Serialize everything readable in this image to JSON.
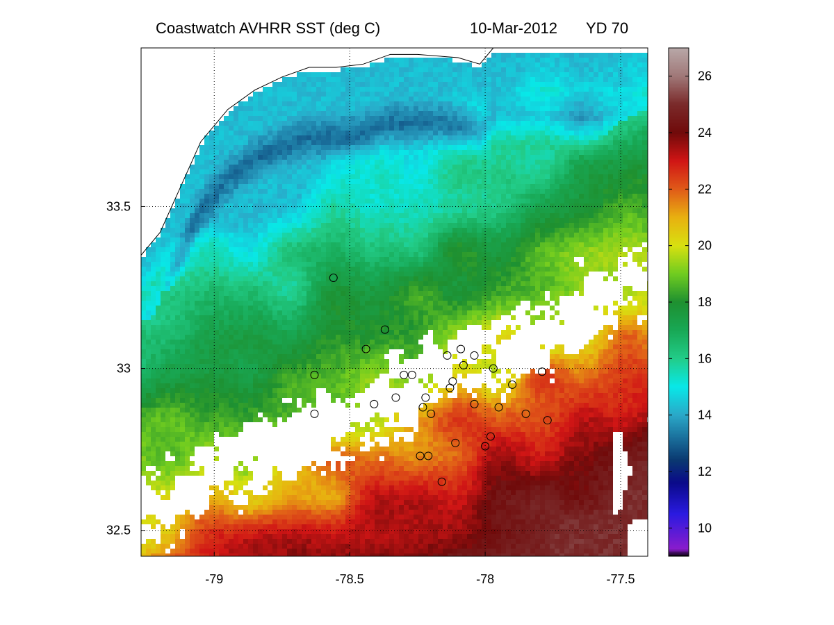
{
  "title": {
    "product": "Coastwatch AVHRR SST (deg C)",
    "date": "10-Mar-2012",
    "yearday": "YD 70"
  },
  "chart_data": [
    {
      "type": "heatmap",
      "title": "Coastwatch AVHRR SST (deg C)",
      "xlim": [
        -79.27,
        -77.4
      ],
      "ylim": [
        32.42,
        33.99
      ],
      "x_ticks": [
        -79,
        -78.5,
        -78,
        -77.5
      ],
      "x_tick_labels": [
        "-79",
        "-78.5",
        "-78",
        "-77.5"
      ],
      "y_ticks": [
        32.5,
        33,
        33.5
      ],
      "y_tick_labels": [
        "32.5",
        "33",
        "33.5"
      ],
      "grid": "dotted",
      "colorbar": {
        "min": 9,
        "max": 27,
        "ticks": [
          10,
          12,
          14,
          16,
          18,
          20,
          22,
          24,
          26
        ],
        "tick_labels": [
          "10",
          "12",
          "14",
          "16",
          "18",
          "20",
          "22",
          "24",
          "26"
        ],
        "colormap": [
          [
            9,
            "#000000"
          ],
          [
            9.25,
            "#8a1ccc"
          ],
          [
            10.5,
            "#2a1ae0"
          ],
          [
            11.6,
            "#0a0a8a"
          ],
          [
            12.4,
            "#0a3870"
          ],
          [
            14,
            "#2aa8c8"
          ],
          [
            15,
            "#08e8e8"
          ],
          [
            16,
            "#22cc88"
          ],
          [
            17,
            "#18a855"
          ],
          [
            18,
            "#1e9030"
          ],
          [
            19,
            "#70cc20"
          ],
          [
            20,
            "#d8e010"
          ],
          [
            21,
            "#e8b010"
          ],
          [
            22,
            "#e05a18"
          ],
          [
            23,
            "#d01515"
          ],
          [
            24,
            "#700a0a"
          ],
          [
            25,
            "#7a2a2a"
          ],
          [
            26,
            "#a07878"
          ],
          [
            27,
            "#b8a8a8"
          ]
        ]
      },
      "sst_field": {
        "front_axis": [
          [
            -79.1,
            32.6
          ],
          [
            -77.5,
            33.2
          ]
        ],
        "values_by_offshore_distance": [
          14.3,
          15.2,
          16.0,
          17.2,
          18.2,
          19.2,
          20.3,
          22.0,
          23.2,
          24.2,
          25.0
        ],
        "near_shore_band": [
          14.3,
          13.5,
          15.0
        ],
        "description_of_clouds": "white cloud gaps along the Gulf Stream front"
      },
      "coastline": [
        [
          -79.27,
          33.35
        ],
        [
          -79.2,
          33.42
        ],
        [
          -79.13,
          33.55
        ],
        [
          -79.05,
          33.7
        ],
        [
          -78.95,
          33.8
        ],
        [
          -78.85,
          33.86
        ],
        [
          -78.75,
          33.9
        ],
        [
          -78.65,
          33.93
        ],
        [
          -78.55,
          33.93
        ],
        [
          -78.45,
          33.94
        ],
        [
          -78.35,
          33.97
        ],
        [
          -78.25,
          33.97
        ],
        [
          -78.1,
          33.96
        ],
        [
          -78.02,
          33.94
        ],
        [
          -77.97,
          33.99
        ]
      ],
      "stations": [
        {
          "lon": -78.56,
          "lat": 33.28
        },
        {
          "lon": -78.37,
          "lat": 33.12
        },
        {
          "lon": -78.44,
          "lat": 33.06
        },
        {
          "lon": -78.08,
          "lat": 33.01
        },
        {
          "lon": -78.63,
          "lat": 32.98
        },
        {
          "lon": -78.14,
          "lat": 33.04
        },
        {
          "lon": -78.63,
          "lat": 32.86
        },
        {
          "lon": -78.41,
          "lat": 32.89
        },
        {
          "lon": -78.23,
          "lat": 32.88
        },
        {
          "lon": -78.09,
          "lat": 33.06
        },
        {
          "lon": -78.33,
          "lat": 32.91
        },
        {
          "lon": -78.3,
          "lat": 32.98
        },
        {
          "lon": -78.27,
          "lat": 32.98
        },
        {
          "lon": -78.2,
          "lat": 32.86
        },
        {
          "lon": -78.04,
          "lat": 32.89
        },
        {
          "lon": -78.22,
          "lat": 32.91
        },
        {
          "lon": -77.97,
          "lat": 33.0
        },
        {
          "lon": -77.95,
          "lat": 32.88
        },
        {
          "lon": -77.79,
          "lat": 32.99
        },
        {
          "lon": -77.85,
          "lat": 32.86
        },
        {
          "lon": -77.98,
          "lat": 32.79
        },
        {
          "lon": -78.0,
          "lat": 32.76
        },
        {
          "lon": -78.24,
          "lat": 32.73
        },
        {
          "lon": -78.04,
          "lat": 33.04
        },
        {
          "lon": -78.21,
          "lat": 32.73
        },
        {
          "lon": -78.11,
          "lat": 32.77
        },
        {
          "lon": -77.77,
          "lat": 32.84
        },
        {
          "lon": -78.12,
          "lat": 32.96
        },
        {
          "lon": -78.13,
          "lat": 32.94
        },
        {
          "lon": -78.16,
          "lat": 32.65
        },
        {
          "lon": -77.9,
          "lat": 32.95
        }
      ]
    }
  ]
}
